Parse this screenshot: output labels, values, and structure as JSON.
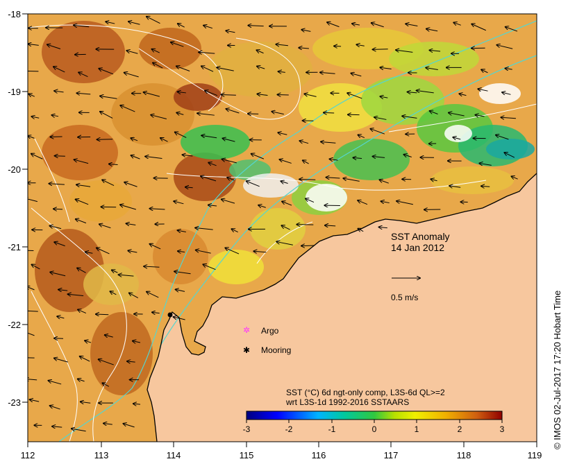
{
  "title": "SST Anomaly",
  "date": "14 Jan 2012",
  "scale_label": "0.5 m/s",
  "legend": {
    "argo": "Argo",
    "mooring": "Mooring"
  },
  "colorbar": {
    "caption_line1": "SST (°C) 6d ngt-only comp, L3S-6d QL>=2",
    "caption_line2": "wrt L3S-1d 1992-2016 SSTAARS",
    "ticks": [
      "-3",
      "-2",
      "-1",
      "0",
      "1",
      "2",
      "3"
    ]
  },
  "x_ticks": [
    "112",
    "113",
    "114",
    "115",
    "116",
    "117",
    "118",
    "119"
  ],
  "y_ticks": [
    "-18",
    "-19",
    "-20",
    "-21",
    "-22",
    "-23"
  ],
  "credit": "© IMOS 02-Jul-2017 17:20 Hobart Time",
  "colors": {
    "land": "#f7c79e",
    "coastline": "#000000",
    "bathy_contour": "#55d6cf",
    "ssh_contour": "#ffffff",
    "argo": "#ff33ff",
    "mooring": "#000000"
  }
}
